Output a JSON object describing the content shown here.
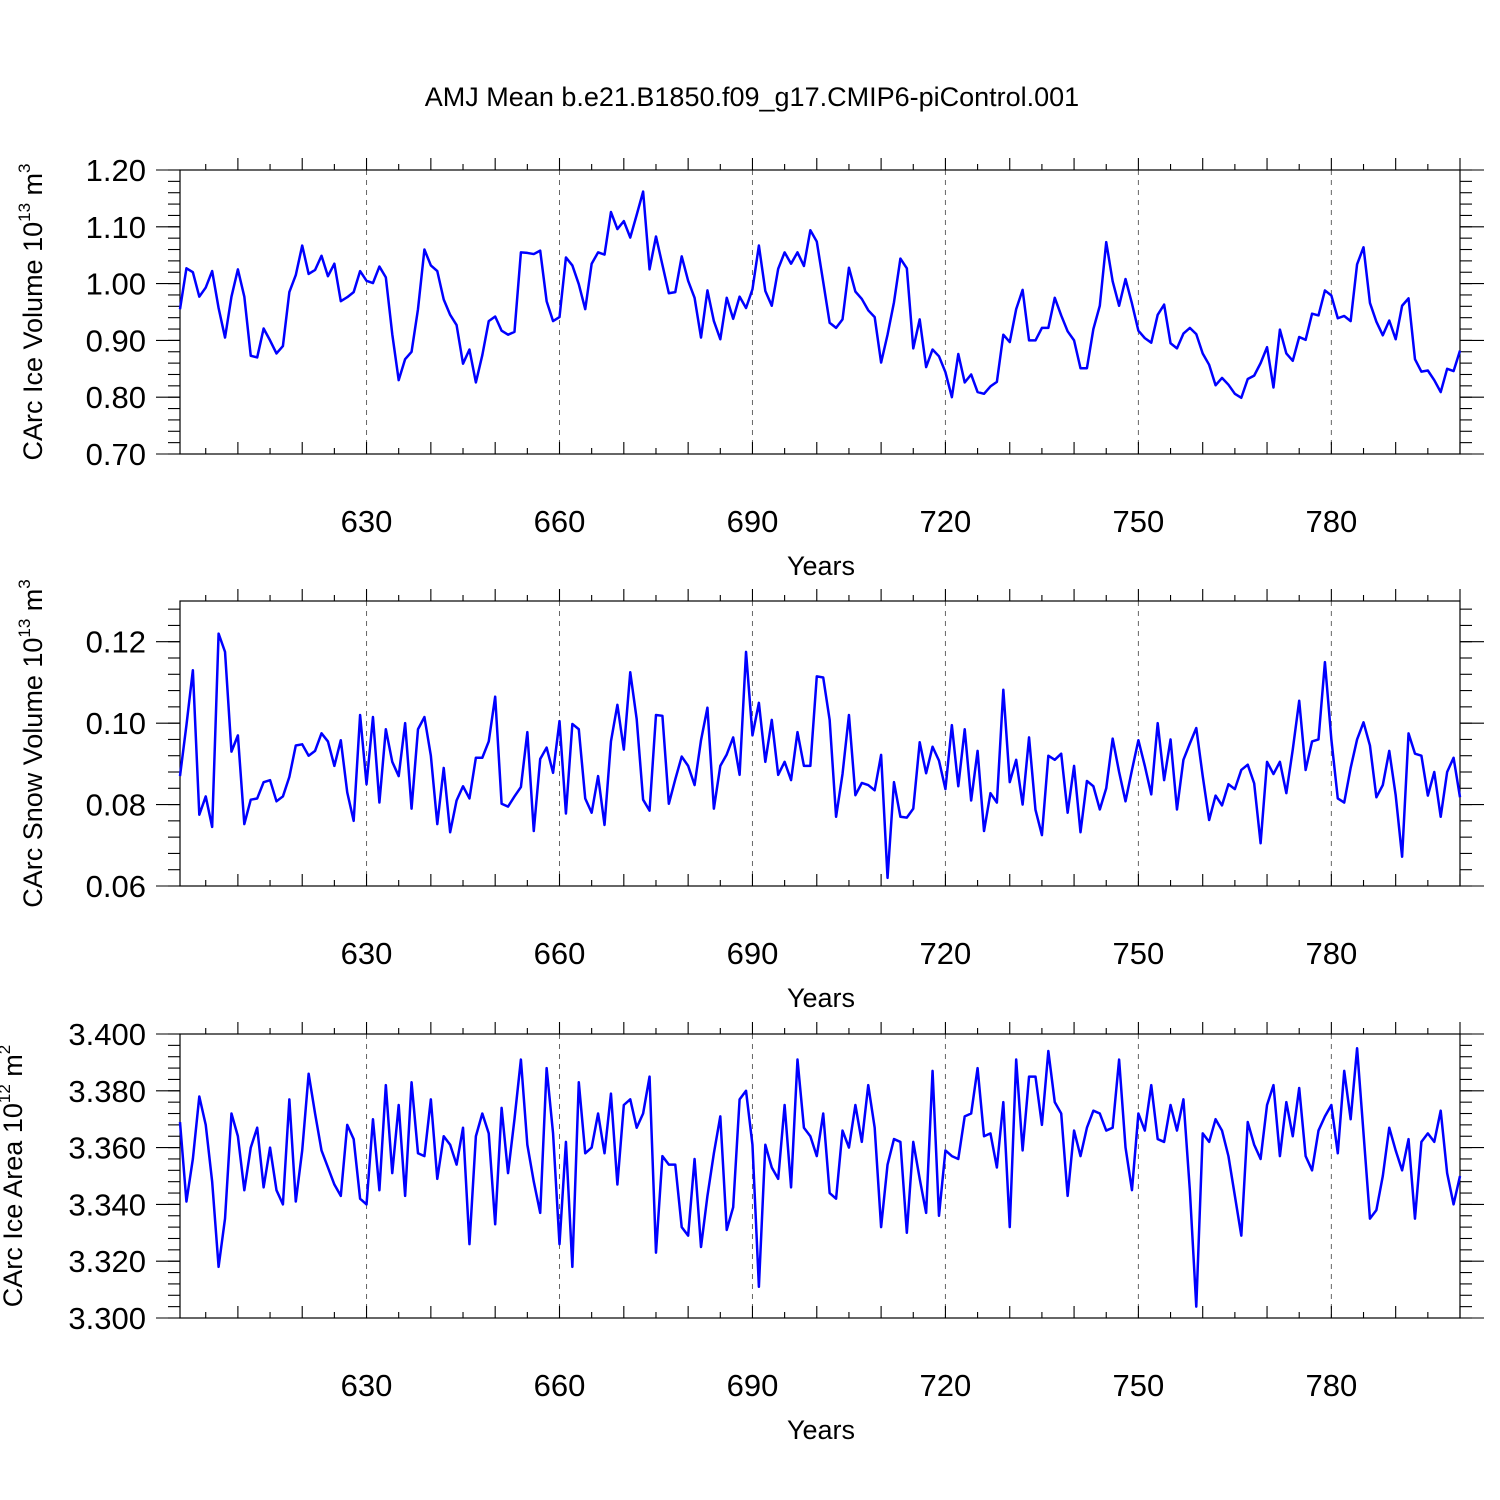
{
  "title": "AMJ Mean b.e21.B1850.f09_g17.CMIP6-piControl.001",
  "colors": {
    "line": "#0000ff",
    "axes": "#000000",
    "grid": "#666666"
  },
  "chart_data": [
    {
      "type": "line",
      "title": "AMJ Mean b.e21.B1850.f09_g17.CMIP6-piControl.001",
      "xlabel": "Years",
      "ylabel": "CArc Ice Volume 10",
      "ylabel_sup": "13",
      "ylabel_unit": " m",
      "ylabel_unit_sup": "3",
      "x_start": 601,
      "xlim": [
        601,
        800
      ],
      "ylim": [
        0.7,
        1.2
      ],
      "x_ticks": [
        630,
        660,
        690,
        720,
        750,
        780
      ],
      "x_tick_labels": [
        "630",
        "660",
        "690",
        "720",
        "750",
        "780"
      ],
      "y_ticks": [
        0.7,
        0.8,
        0.9,
        1.0,
        1.1,
        1.2
      ],
      "y_tick_labels": [
        "0.70",
        "0.80",
        "0.90",
        "1.00",
        "1.10",
        "1.20"
      ],
      "grid": "vertical dashed at x ticks",
      "series": [
        {
          "name": "CArc Ice Volume",
          "values": [
            0.955,
            1.027,
            1.02,
            0.977,
            0.993,
            1.022,
            0.957,
            0.905,
            0.977,
            1.025,
            0.977,
            0.873,
            0.87,
            0.921,
            0.9,
            0.877,
            0.89,
            0.985,
            1.015,
            1.067,
            1.017,
            1.024,
            1.049,
            1.013,
            1.035,
            0.969,
            0.976,
            0.985,
            1.022,
            1.005,
            1.001,
            1.03,
            1.011,
            0.911,
            0.83,
            0.867,
            0.88,
            0.955,
            1.06,
            1.032,
            1.022,
            0.972,
            0.945,
            0.927,
            0.859,
            0.884,
            0.826,
            0.874,
            0.934,
            0.942,
            0.917,
            0.91,
            0.915,
            1.055,
            1.054,
            1.052,
            1.058,
            0.969,
            0.934,
            0.941,
            1.046,
            1.032,
            0.999,
            0.955,
            1.035,
            1.055,
            1.051,
            1.126,
            1.096,
            1.11,
            1.081,
            1.121,
            1.162,
            1.025,
            1.083,
            1.033,
            0.983,
            0.985,
            1.048,
            1.005,
            0.975,
            0.905,
            0.988,
            0.934,
            0.902,
            0.975,
            0.938,
            0.977,
            0.957,
            0.99,
            1.067,
            0.987,
            0.961,
            1.026,
            1.055,
            1.035,
            1.055,
            1.031,
            1.094,
            1.074,
            1.003,
            0.931,
            0.922,
            0.937,
            1.028,
            0.986,
            0.973,
            0.953,
            0.941,
            0.861,
            0.91,
            0.967,
            1.044,
            1.027,
            0.886,
            0.937,
            0.853,
            0.884,
            0.872,
            0.844,
            0.8,
            0.876,
            0.826,
            0.84,
            0.809,
            0.806,
            0.819,
            0.827,
            0.91,
            0.897,
            0.955,
            0.989,
            0.9,
            0.9,
            0.922,
            0.922,
            0.975,
            0.944,
            0.916,
            0.9,
            0.851,
            0.851,
            0.92,
            0.961,
            1.073,
            1.004,
            0.961,
            1.008,
            0.965,
            0.917,
            0.904,
            0.896,
            0.945,
            0.963,
            0.895,
            0.886,
            0.912,
            0.922,
            0.911,
            0.877,
            0.857,
            0.821,
            0.834,
            0.822,
            0.806,
            0.799,
            0.832,
            0.838,
            0.86,
            0.888,
            0.817,
            0.919,
            0.877,
            0.864,
            0.906,
            0.901,
            0.947,
            0.944,
            0.988,
            0.979,
            0.939,
            0.943,
            0.934,
            1.034,
            1.064,
            0.966,
            0.933,
            0.909,
            0.935,
            0.902,
            0.961,
            0.974,
            0.867,
            0.845,
            0.847,
            0.83,
            0.809,
            0.85,
            0.846,
            0.882
          ]
        }
      ]
    },
    {
      "type": "line",
      "xlabel": "Years",
      "ylabel": "CArc Snow Volume 10",
      "ylabel_sup": "13",
      "ylabel_unit": " m",
      "ylabel_unit_sup": "3",
      "x_start": 601,
      "xlim": [
        601,
        800
      ],
      "ylim": [
        0.06,
        0.13
      ],
      "x_ticks": [
        630,
        660,
        690,
        720,
        750,
        780
      ],
      "x_tick_labels": [
        "630",
        "660",
        "690",
        "720",
        "750",
        "780"
      ],
      "y_ticks": [
        0.06,
        0.08,
        0.1,
        0.12
      ],
      "y_tick_labels": [
        "0.06",
        "0.08",
        "0.10",
        "0.12"
      ],
      "grid": "vertical dashed at x ticks",
      "series": [
        {
          "name": "CArc Snow Volume",
          "values": [
            0.087,
            0.0995,
            0.113,
            0.0775,
            0.082,
            0.0745,
            0.122,
            0.1175,
            0.093,
            0.097,
            0.0752,
            0.0812,
            0.0815,
            0.0855,
            0.086,
            0.0808,
            0.082,
            0.0868,
            0.0945,
            0.0948,
            0.092,
            0.0932,
            0.0975,
            0.0955,
            0.0895,
            0.0958,
            0.083,
            0.076,
            0.102,
            0.085,
            0.1015,
            0.0805,
            0.0985,
            0.0905,
            0.087,
            0.1,
            0.079,
            0.0985,
            0.1015,
            0.092,
            0.0752,
            0.089,
            0.0732,
            0.081,
            0.0845,
            0.0815,
            0.0915,
            0.0915,
            0.0955,
            0.1065,
            0.0802,
            0.0795,
            0.082,
            0.0843,
            0.0978,
            0.0735,
            0.0912,
            0.094,
            0.0878,
            0.1005,
            0.0778,
            0.0998,
            0.0985,
            0.0815,
            0.078,
            0.087,
            0.075,
            0.0955,
            0.1045,
            0.0935,
            0.1125,
            0.101,
            0.0812,
            0.0785,
            0.102,
            0.1018,
            0.0802,
            0.0862,
            0.0918,
            0.0895,
            0.0848,
            0.0958,
            0.1038,
            0.079,
            0.0895,
            0.0923,
            0.0965,
            0.0873,
            0.1175,
            0.097,
            0.105,
            0.0905,
            0.1008,
            0.0873,
            0.0905,
            0.086,
            0.0978,
            0.0895,
            0.0895,
            0.1115,
            0.1112,
            0.1008,
            0.077,
            0.0875,
            0.102,
            0.0823,
            0.0853,
            0.0848,
            0.0835,
            0.0922,
            0.062,
            0.0855,
            0.077,
            0.0768,
            0.079,
            0.0953,
            0.0877,
            0.0942,
            0.0908,
            0.0838,
            0.0995,
            0.0845,
            0.0985,
            0.081,
            0.0932,
            0.0735,
            0.0828,
            0.0805,
            0.1082,
            0.0855,
            0.091,
            0.08,
            0.0965,
            0.0787,
            0.0725,
            0.092,
            0.091,
            0.0925,
            0.078,
            0.0895,
            0.0732,
            0.0858,
            0.0845,
            0.0788,
            0.084,
            0.0962,
            0.088,
            0.0808,
            0.0885,
            0.0958,
            0.0895,
            0.0825,
            0.1,
            0.086,
            0.096,
            0.0788,
            0.091,
            0.095,
            0.0988,
            0.087,
            0.0762,
            0.0822,
            0.0798,
            0.085,
            0.0838,
            0.0885,
            0.0898,
            0.0852,
            0.0705,
            0.0905,
            0.0875,
            0.0905,
            0.0828,
            0.0935,
            0.1055,
            0.0885,
            0.0955,
            0.096,
            0.115,
            0.096,
            0.0815,
            0.0805,
            0.089,
            0.096,
            0.1002,
            0.0945,
            0.0818,
            0.0848,
            0.0932,
            0.0823,
            0.0672,
            0.0975,
            0.0925,
            0.092,
            0.0822,
            0.088,
            0.077,
            0.088,
            0.0915,
            0.0818
          ]
        }
      ]
    },
    {
      "type": "line",
      "xlabel": "Years",
      "ylabel": "CArc Ice Area 10",
      "ylabel_sup": "12",
      "ylabel_unit": " m",
      "ylabel_unit_sup": "2",
      "x_start": 601,
      "xlim": [
        601,
        800
      ],
      "ylim": [
        3.3,
        3.4
      ],
      "x_ticks": [
        630,
        660,
        690,
        720,
        750,
        780
      ],
      "x_tick_labels": [
        "630",
        "660",
        "690",
        "720",
        "750",
        "780"
      ],
      "y_ticks": [
        3.3,
        3.32,
        3.34,
        3.36,
        3.38,
        3.4
      ],
      "y_tick_labels": [
        "3.300",
        "3.320",
        "3.340",
        "3.360",
        "3.380",
        "3.400"
      ],
      "grid": "vertical dashed at x ticks",
      "series": [
        {
          "name": "CArc Ice Area",
          "values": [
            3.369,
            3.341,
            3.356,
            3.378,
            3.368,
            3.348,
            3.318,
            3.335,
            3.372,
            3.364,
            3.345,
            3.36,
            3.367,
            3.346,
            3.36,
            3.345,
            3.34,
            3.377,
            3.341,
            3.359,
            3.386,
            3.372,
            3.359,
            3.353,
            3.347,
            3.343,
            3.368,
            3.363,
            3.342,
            3.34,
            3.37,
            3.345,
            3.382,
            3.351,
            3.375,
            3.343,
            3.383,
            3.358,
            3.357,
            3.377,
            3.349,
            3.364,
            3.361,
            3.354,
            3.367,
            3.326,
            3.364,
            3.372,
            3.365,
            3.333,
            3.374,
            3.351,
            3.37,
            3.391,
            3.361,
            3.348,
            3.337,
            3.388,
            3.365,
            3.326,
            3.362,
            3.318,
            3.383,
            3.358,
            3.36,
            3.372,
            3.358,
            3.379,
            3.347,
            3.375,
            3.377,
            3.367,
            3.372,
            3.385,
            3.323,
            3.357,
            3.354,
            3.354,
            3.332,
            3.329,
            3.356,
            3.325,
            3.343,
            3.358,
            3.371,
            3.331,
            3.339,
            3.377,
            3.38,
            3.361,
            3.311,
            3.361,
            3.353,
            3.349,
            3.375,
            3.346,
            3.391,
            3.367,
            3.364,
            3.357,
            3.372,
            3.344,
            3.342,
            3.366,
            3.36,
            3.375,
            3.362,
            3.382,
            3.367,
            3.332,
            3.354,
            3.363,
            3.362,
            3.33,
            3.362,
            3.349,
            3.337,
            3.387,
            3.336,
            3.359,
            3.357,
            3.356,
            3.371,
            3.372,
            3.388,
            3.364,
            3.365,
            3.353,
            3.376,
            3.332,
            3.391,
            3.359,
            3.385,
            3.385,
            3.368,
            3.394,
            3.376,
            3.372,
            3.343,
            3.366,
            3.357,
            3.367,
            3.373,
            3.372,
            3.366,
            3.367,
            3.391,
            3.36,
            3.345,
            3.372,
            3.366,
            3.382,
            3.363,
            3.362,
            3.375,
            3.366,
            3.377,
            3.345,
            3.304,
            3.365,
            3.362,
            3.37,
            3.366,
            3.357,
            3.343,
            3.329,
            3.369,
            3.361,
            3.356,
            3.375,
            3.382,
            3.357,
            3.376,
            3.364,
            3.381,
            3.357,
            3.352,
            3.366,
            3.371,
            3.375,
            3.358,
            3.387,
            3.37,
            3.395,
            3.365,
            3.335,
            3.338,
            3.35,
            3.367,
            3.359,
            3.352,
            3.363,
            3.335,
            3.362,
            3.365,
            3.362,
            3.373,
            3.351,
            3.34,
            3.35
          ]
        }
      ]
    }
  ]
}
